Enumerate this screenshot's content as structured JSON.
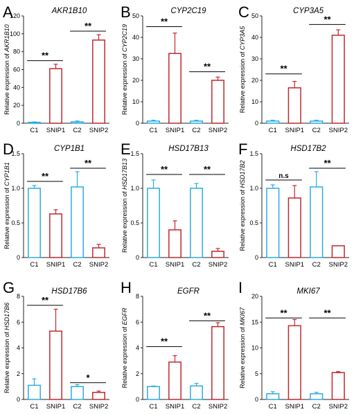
{
  "colors": {
    "control": "#29abe2",
    "snip": "#c1272d",
    "axis": "#222222"
  },
  "chart_data": [
    {
      "type": "bar",
      "panel_label": "A",
      "title": "AKR1B10",
      "ylabel_prefix": "Relative expression of ",
      "ylabel_gene": "AKR1B10",
      "categories": [
        "C1",
        "SNIP1",
        "C2",
        "SNIP2"
      ],
      "values": [
        1,
        61,
        1.5,
        93
      ],
      "errors": [
        0.5,
        5,
        1,
        6
      ],
      "ylim": [
        0,
        120
      ],
      "yticks": [
        "0",
        "20",
        "40",
        "60",
        "80",
        "100",
        "120"
      ],
      "sig": [
        {
          "from": 0,
          "to": 1,
          "at": 70,
          "label": "**"
        },
        {
          "from": 2,
          "to": 3,
          "at": 103,
          "label": "**"
        }
      ]
    },
    {
      "type": "bar",
      "panel_label": "B",
      "title": "CYP2C19",
      "ylabel_prefix": "Relative expression of ",
      "ylabel_gene": "CYP2C19",
      "categories": [
        "C1",
        "SNIP1",
        "C2",
        "SNIP2"
      ],
      "values": [
        1,
        32.5,
        1,
        20
      ],
      "errors": [
        0.4,
        9.5,
        0.4,
        1.5
      ],
      "ylim": [
        0,
        50
      ],
      "yticks": [
        "0",
        "10",
        "20",
        "30",
        "40",
        "50"
      ],
      "sig": [
        {
          "from": 0,
          "to": 1,
          "at": 45,
          "label": "**"
        },
        {
          "from": 2,
          "to": 3,
          "at": 24,
          "label": "**"
        }
      ]
    },
    {
      "type": "bar",
      "panel_label": "C",
      "title": "CYP3A5",
      "ylabel_prefix": "Relative expression of ",
      "ylabel_gene": "CYP3A5",
      "categories": [
        "C1",
        "SNIP1",
        "C2",
        "SNIP2"
      ],
      "values": [
        1,
        16.5,
        1,
        41
      ],
      "errors": [
        0.4,
        3,
        0.4,
        2.5
      ],
      "ylim": [
        0,
        50
      ],
      "yticks": [
        "0",
        "10",
        "20",
        "30",
        "40",
        "50"
      ],
      "sig": [
        {
          "from": 0,
          "to": 1,
          "at": 23,
          "label": "**"
        },
        {
          "from": 2,
          "to": 3,
          "at": 46,
          "label": "**"
        }
      ]
    },
    {
      "type": "bar",
      "panel_label": "D",
      "title": "CYP1B1",
      "ylabel_prefix": "Relative expression of ",
      "ylabel_gene": "CYP1B1",
      "categories": [
        "C1",
        "SNIP1",
        "C2",
        "SNIP2"
      ],
      "values": [
        1,
        0.63,
        1.02,
        0.14
      ],
      "errors": [
        0.04,
        0.06,
        0.22,
        0.05
      ],
      "ylim": [
        0,
        1.5
      ],
      "yticks": [
        "0",
        "0.5",
        "1.0",
        "1.5"
      ],
      "sig": [
        {
          "from": 0,
          "to": 1,
          "at": 1.1,
          "label": "**"
        },
        {
          "from": 2,
          "to": 3,
          "at": 1.29,
          "label": "**"
        }
      ]
    },
    {
      "type": "bar",
      "panel_label": "E",
      "title": "HSD17B13",
      "ylabel_prefix": "Relative expression of ",
      "ylabel_gene": "HSD17B13",
      "categories": [
        "C1",
        "SNIP1",
        "C2",
        "SNIP2"
      ],
      "values": [
        1,
        0.4,
        1,
        0.09
      ],
      "errors": [
        0.12,
        0.13,
        0.07,
        0.04
      ],
      "ylim": [
        0,
        1.5
      ],
      "yticks": [
        "0",
        "0.5",
        "1.0",
        "1.5"
      ],
      "sig": [
        {
          "from": 0,
          "to": 1,
          "at": 1.2,
          "label": "**"
        },
        {
          "from": 2,
          "to": 3,
          "at": 1.2,
          "label": "**"
        }
      ]
    },
    {
      "type": "bar",
      "panel_label": "F",
      "title": "HSD17B2",
      "ylabel_prefix": "Relative expression of ",
      "ylabel_gene": "HSD17B2",
      "categories": [
        "C1",
        "SNIP1",
        "C2",
        "SNIP2"
      ],
      "values": [
        1,
        0.86,
        1.02,
        0.17
      ],
      "errors": [
        0.05,
        0.18,
        0.22,
        0.0
      ],
      "ylim": [
        0,
        1.5
      ],
      "yticks": [
        "0",
        "0.5",
        "1.0",
        "1.5"
      ],
      "sig": [
        {
          "from": 0,
          "to": 1,
          "at": 1.12,
          "label": "n.s"
        },
        {
          "from": 2,
          "to": 3,
          "at": 1.29,
          "label": "**"
        }
      ]
    },
    {
      "type": "bar",
      "panel_label": "G",
      "title": "HSD17B6",
      "ylabel_prefix": "Relative expression of ",
      "ylabel_gene": "HSD17B6",
      "categories": [
        "C1",
        "SNIP1",
        "C2",
        "SNIP2"
      ],
      "values": [
        1.1,
        5.3,
        1,
        0.55
      ],
      "errors": [
        0.5,
        1.7,
        0.15,
        0.1
      ],
      "ylim": [
        0,
        8
      ],
      "yticks": [
        "0",
        "2",
        "4",
        "6",
        "8"
      ],
      "sig": [
        {
          "from": 0,
          "to": 1,
          "at": 7.3,
          "label": "**"
        },
        {
          "from": 2,
          "to": 3,
          "at": 1.3,
          "label": "*"
        }
      ]
    },
    {
      "type": "bar",
      "panel_label": "H",
      "title": "EGFR",
      "ylabel_prefix": "Relative expression of ",
      "ylabel_gene": "EGFR",
      "categories": [
        "C1",
        "SNIP1",
        "C2",
        "SNIP2"
      ],
      "values": [
        1,
        2.9,
        1.05,
        5.65
      ],
      "errors": [
        0.04,
        0.5,
        0.2,
        0.3
      ],
      "ylim": [
        0,
        8
      ],
      "yticks": [
        "0",
        "2",
        "4",
        "6",
        "8"
      ],
      "sig": [
        {
          "from": 0,
          "to": 1,
          "at": 4.1,
          "label": "**"
        },
        {
          "from": 2,
          "to": 3,
          "at": 6.1,
          "label": "**"
        }
      ]
    },
    {
      "type": "bar",
      "panel_label": "I",
      "title": "MKI67",
      "ylabel_prefix": "Relative expression of ",
      "ylabel_gene": "MKI67",
      "categories": [
        "C1",
        "SNIP1",
        "C2",
        "SNIP2"
      ],
      "values": [
        1.1,
        14.3,
        1.1,
        5.2
      ],
      "errors": [
        0.4,
        1.2,
        0.3,
        0.2
      ],
      "ylim": [
        0,
        20
      ],
      "yticks": [
        "0",
        "5",
        "10",
        "15",
        "20"
      ],
      "sig": [
        {
          "from": 0,
          "to": 1,
          "at": 15.8,
          "label": "**"
        },
        {
          "from": 2,
          "to": 3,
          "at": 15.8,
          "label": "**"
        }
      ]
    }
  ]
}
